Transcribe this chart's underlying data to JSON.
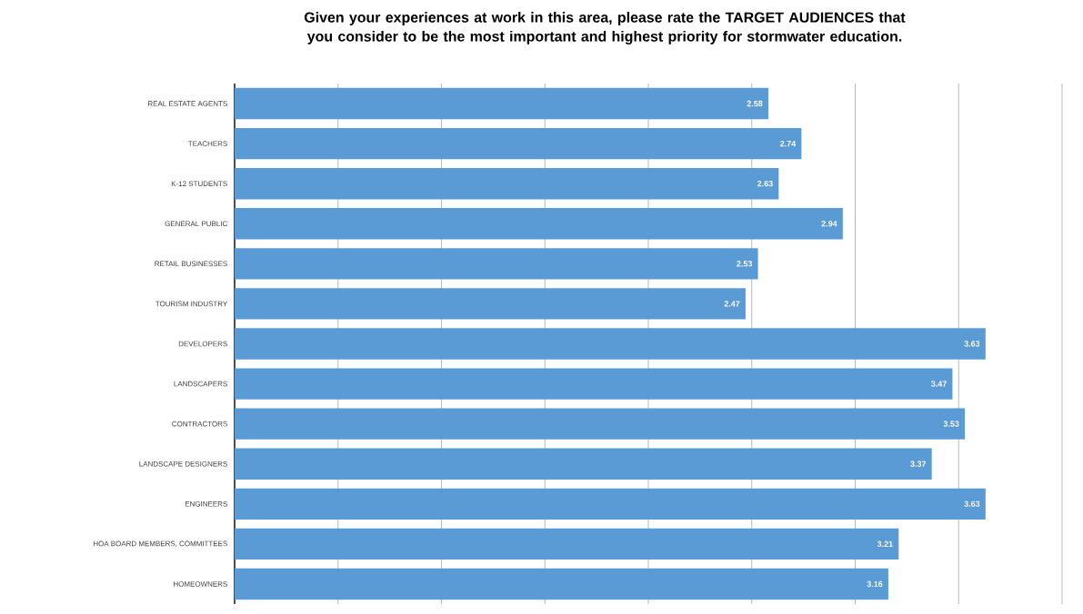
{
  "chart_data": {
    "type": "bar",
    "orientation": "horizontal",
    "title": "Given your experiences at work in this area, please rate the TARGET AUDIENCES that you consider to be the most important and highest priority for stormwater education.",
    "categories": [
      "REAL ESTATE AGENTS",
      "TEACHERS",
      "K-12 STUDENTS",
      "GENERAL PUBLIC",
      "RETAIL BUSINESSES",
      "TOURISM INDUSTRY",
      "DEVELOPERS",
      "LANDSCAPERS",
      "CONTRACTORS",
      "LANDSCAPE DESIGNERS",
      "ENGINEERS",
      "HOA BOARD MEMBERS, COMMITTEES",
      "HOMEOWNERS"
    ],
    "values": [
      2.58,
      2.74,
      2.63,
      2.94,
      2.53,
      2.47,
      3.63,
      3.47,
      3.53,
      3.37,
      3.63,
      3.21,
      3.16
    ],
    "color": "#5b9bd5",
    "xlim": [
      0,
      4
    ],
    "xticks": [
      {
        "value": 0,
        "label": null
      },
      {
        "value": 0.5,
        "label": null
      },
      {
        "value": 1,
        "label": null
      },
      {
        "value": 1.5,
        "label": null
      },
      {
        "value": 2,
        "label": null
      },
      {
        "value": 2.5,
        "label": null
      },
      {
        "value": 3,
        "label": null
      },
      {
        "value": 3.5,
        "label": null
      },
      {
        "value": 4,
        "label": null
      }
    ],
    "grid": "x",
    "tick_labels": "y",
    "data_labels": true
  }
}
